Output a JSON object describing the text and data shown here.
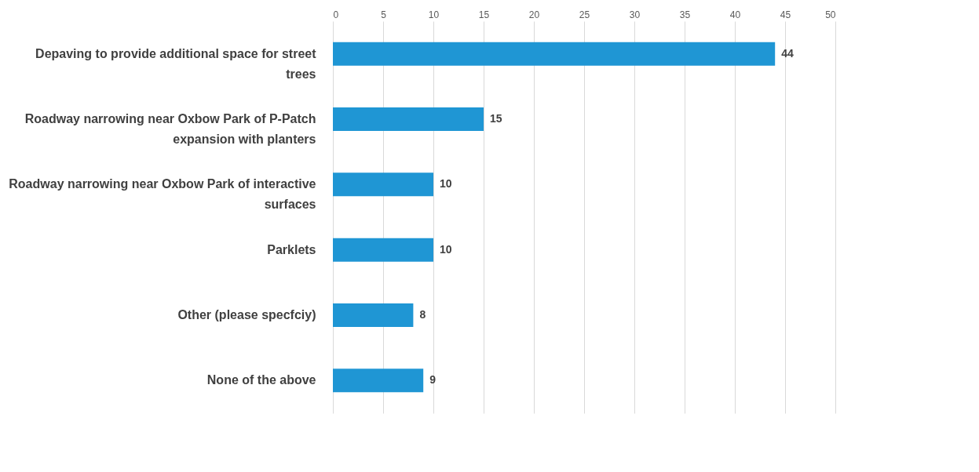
{
  "chart_data": {
    "type": "bar",
    "orientation": "horizontal",
    "categories": [
      "Depaving to provide additional space for street trees",
      "Roadway narrowing near Oxbow Park of P-Patch expansion with planters",
      "Roadway narrowing near Oxbow Park of interactive surfaces",
      "Parklets",
      "Other (please specfciy)",
      "None of the above"
    ],
    "values": [
      44,
      15,
      10,
      10,
      8,
      9
    ],
    "color": "#1f96d4",
    "xlim": [
      0,
      50
    ],
    "xticks": [
      0,
      5,
      10,
      15,
      20,
      25,
      30,
      35,
      40,
      45,
      50
    ],
    "grid": "x",
    "data_labels": true
  }
}
